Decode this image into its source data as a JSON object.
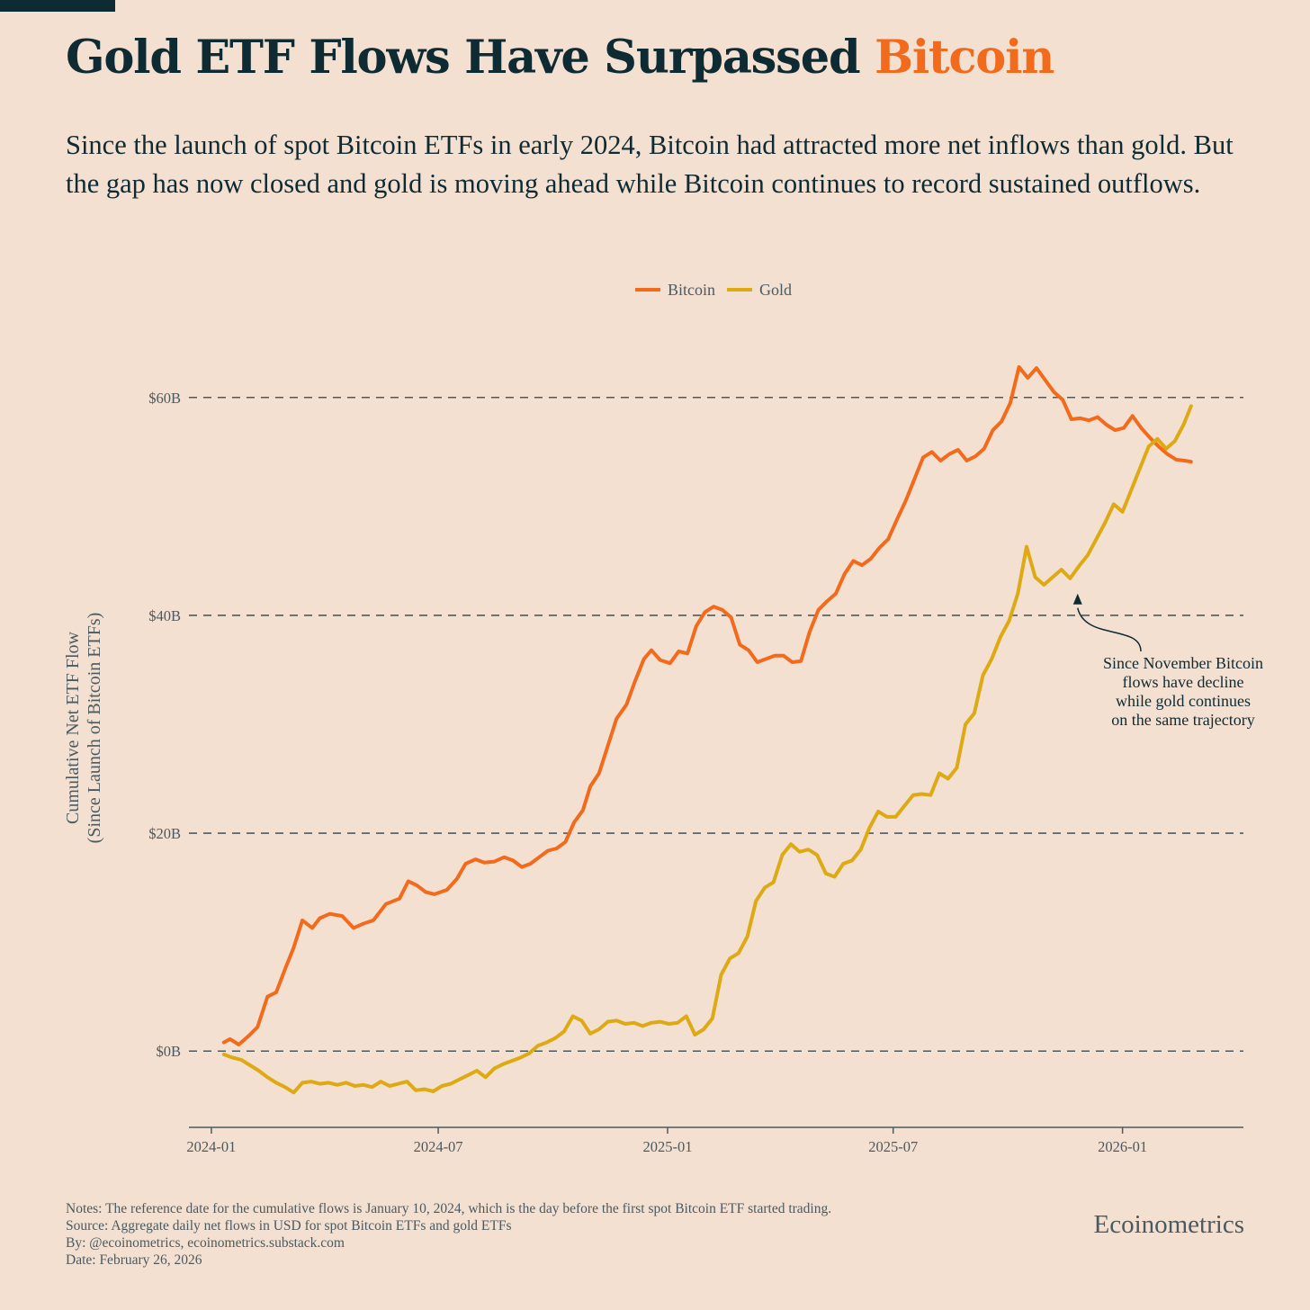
{
  "header": {
    "title_main": "Gold ETF Flows Have Surpassed",
    "title_highlight": "Bitcoin",
    "subtitle": "Since the launch of spot Bitcoin ETFs in early 2024, Bitcoin had attracted more net inflows than gold. But the gap has now closed and gold is moving ahead while Bitcoin continues to record sustained outflows."
  },
  "colors": {
    "bitcoin": "#f26b1d",
    "gold": "#ddaa14",
    "accent_dark": "#0e2a33",
    "background": "#f3e0d0"
  },
  "chart_data": {
    "type": "line",
    "ylabel": "Cumulative Net ETF Flow\n(Since Launch of Bitcoin ETFs)",
    "ylim": [
      -7,
      67
    ],
    "y_ticks": [
      0,
      20,
      40,
      60
    ],
    "y_tick_labels": [
      "$0B",
      "$20B",
      "$40B",
      "$60B"
    ],
    "xlim": [
      "2023-12-14",
      "2026-04-08"
    ],
    "x_ticks": [
      "2024-01-01",
      "2024-07-01",
      "2025-01-01",
      "2025-07-01",
      "2026-01-01"
    ],
    "x_tick_labels": [
      "2024-01",
      "2024-07",
      "2025-01",
      "2025-07",
      "2026-01"
    ],
    "grid": "horizontal dashed",
    "legend": "top-center",
    "series": [
      {
        "name": "Bitcoin",
        "unit": "USD billions",
        "points": [
          [
            "2024-01-11",
            0.8
          ],
          [
            "2024-01-16",
            1.1
          ],
          [
            "2024-01-23",
            0.6
          ],
          [
            "2024-01-31",
            1.4
          ],
          [
            "2024-02-07",
            2.2
          ],
          [
            "2024-02-15",
            5.0
          ],
          [
            "2024-02-22",
            5.4
          ],
          [
            "2024-02-29",
            7.5
          ],
          [
            "2024-03-07",
            9.5
          ],
          [
            "2024-03-14",
            12.0
          ],
          [
            "2024-03-22",
            11.3
          ],
          [
            "2024-03-28",
            12.2
          ],
          [
            "2024-04-05",
            12.6
          ],
          [
            "2024-04-15",
            12.4
          ],
          [
            "2024-04-24",
            11.3
          ],
          [
            "2024-05-02",
            11.7
          ],
          [
            "2024-05-10",
            12.0
          ],
          [
            "2024-05-20",
            13.5
          ],
          [
            "2024-05-31",
            14.0
          ],
          [
            "2024-06-07",
            15.6
          ],
          [
            "2024-06-14",
            15.2
          ],
          [
            "2024-06-21",
            14.6
          ],
          [
            "2024-06-28",
            14.4
          ],
          [
            "2024-07-08",
            14.8
          ],
          [
            "2024-07-16",
            15.8
          ],
          [
            "2024-07-23",
            17.2
          ],
          [
            "2024-07-31",
            17.6
          ],
          [
            "2024-08-07",
            17.3
          ],
          [
            "2024-08-15",
            17.4
          ],
          [
            "2024-08-23",
            17.8
          ],
          [
            "2024-08-30",
            17.5
          ],
          [
            "2024-09-06",
            16.9
          ],
          [
            "2024-09-13",
            17.2
          ],
          [
            "2024-09-20",
            17.8
          ],
          [
            "2024-09-27",
            18.4
          ],
          [
            "2024-10-04",
            18.6
          ],
          [
            "2024-10-11",
            19.2
          ],
          [
            "2024-10-18",
            21.0
          ],
          [
            "2024-10-25",
            22.1
          ],
          [
            "2024-10-31",
            24.3
          ],
          [
            "2024-11-07",
            25.5
          ],
          [
            "2024-11-14",
            28.0
          ],
          [
            "2024-11-21",
            30.5
          ],
          [
            "2024-11-29",
            31.8
          ],
          [
            "2024-12-06",
            34.0
          ],
          [
            "2024-12-13",
            36.0
          ],
          [
            "2024-12-19",
            36.8
          ],
          [
            "2024-12-26",
            35.9
          ],
          [
            "2025-01-03",
            35.6
          ],
          [
            "2025-01-10",
            36.7
          ],
          [
            "2025-01-17",
            36.5
          ],
          [
            "2025-01-24",
            39.0
          ],
          [
            "2025-01-31",
            40.3
          ],
          [
            "2025-02-07",
            40.8
          ],
          [
            "2025-02-14",
            40.5
          ],
          [
            "2025-02-21",
            39.8
          ],
          [
            "2025-02-28",
            37.3
          ],
          [
            "2025-03-07",
            36.8
          ],
          [
            "2025-03-14",
            35.7
          ],
          [
            "2025-03-21",
            36.0
          ],
          [
            "2025-03-28",
            36.3
          ],
          [
            "2025-04-04",
            36.3
          ],
          [
            "2025-04-11",
            35.7
          ],
          [
            "2025-04-18",
            35.8
          ],
          [
            "2025-04-25",
            38.5
          ],
          [
            "2025-05-02",
            40.5
          ],
          [
            "2025-05-09",
            41.3
          ],
          [
            "2025-05-16",
            42.0
          ],
          [
            "2025-05-23",
            43.8
          ],
          [
            "2025-05-30",
            45.0
          ],
          [
            "2025-06-06",
            44.6
          ],
          [
            "2025-06-13",
            45.2
          ],
          [
            "2025-06-20",
            46.2
          ],
          [
            "2025-06-27",
            47.0
          ],
          [
            "2025-07-04",
            48.8
          ],
          [
            "2025-07-11",
            50.5
          ],
          [
            "2025-07-18",
            52.5
          ],
          [
            "2025-07-25",
            54.5
          ],
          [
            "2025-08-01",
            55.0
          ],
          [
            "2025-08-08",
            54.2
          ],
          [
            "2025-08-15",
            54.8
          ],
          [
            "2025-08-22",
            55.2
          ],
          [
            "2025-08-29",
            54.2
          ],
          [
            "2025-09-05",
            54.6
          ],
          [
            "2025-09-12",
            55.3
          ],
          [
            "2025-09-19",
            57.0
          ],
          [
            "2025-09-26",
            57.8
          ],
          [
            "2025-10-03",
            59.5
          ],
          [
            "2025-10-10",
            62.8
          ],
          [
            "2025-10-17",
            61.8
          ],
          [
            "2025-10-24",
            62.7
          ],
          [
            "2025-10-31",
            61.6
          ],
          [
            "2025-11-07",
            60.5
          ],
          [
            "2025-11-14",
            59.8
          ],
          [
            "2025-11-21",
            58.0
          ],
          [
            "2025-11-28",
            58.1
          ],
          [
            "2025-12-05",
            57.9
          ],
          [
            "2025-12-12",
            58.2
          ],
          [
            "2025-12-19",
            57.5
          ],
          [
            "2025-12-26",
            57.0
          ],
          [
            "2026-01-02",
            57.2
          ],
          [
            "2026-01-09",
            58.3
          ],
          [
            "2026-01-16",
            57.2
          ],
          [
            "2026-01-23",
            56.3
          ],
          [
            "2026-01-30",
            55.5
          ],
          [
            "2026-02-06",
            54.8
          ],
          [
            "2026-02-13",
            54.3
          ],
          [
            "2026-02-20",
            54.2
          ],
          [
            "2026-02-25",
            54.1
          ]
        ]
      },
      {
        "name": "Gold",
        "unit": "USD billions",
        "points": [
          [
            "2024-01-11",
            -0.3
          ],
          [
            "2024-01-18",
            -0.6
          ],
          [
            "2024-01-25",
            -0.8
          ],
          [
            "2024-02-01",
            -1.3
          ],
          [
            "2024-02-08",
            -1.8
          ],
          [
            "2024-02-15",
            -2.4
          ],
          [
            "2024-02-22",
            -2.9
          ],
          [
            "2024-02-29",
            -3.3
          ],
          [
            "2024-03-07",
            -3.8
          ],
          [
            "2024-03-14",
            -2.9
          ],
          [
            "2024-03-21",
            -2.8
          ],
          [
            "2024-03-28",
            -3.0
          ],
          [
            "2024-04-04",
            -2.9
          ],
          [
            "2024-04-11",
            -3.1
          ],
          [
            "2024-04-18",
            -2.9
          ],
          [
            "2024-04-25",
            -3.2
          ],
          [
            "2024-05-02",
            -3.1
          ],
          [
            "2024-05-09",
            -3.3
          ],
          [
            "2024-05-16",
            -2.8
          ],
          [
            "2024-05-23",
            -3.2
          ],
          [
            "2024-05-30",
            -3.0
          ],
          [
            "2024-06-06",
            -2.8
          ],
          [
            "2024-06-13",
            -3.6
          ],
          [
            "2024-06-20",
            -3.5
          ],
          [
            "2024-06-27",
            -3.7
          ],
          [
            "2024-07-04",
            -3.2
          ],
          [
            "2024-07-11",
            -3.0
          ],
          [
            "2024-07-18",
            -2.6
          ],
          [
            "2024-07-25",
            -2.2
          ],
          [
            "2024-08-01",
            -1.8
          ],
          [
            "2024-08-08",
            -2.4
          ],
          [
            "2024-08-15",
            -1.6
          ],
          [
            "2024-08-22",
            -1.2
          ],
          [
            "2024-08-29",
            -0.9
          ],
          [
            "2024-09-05",
            -0.6
          ],
          [
            "2024-09-12",
            -0.2
          ],
          [
            "2024-09-19",
            0.5
          ],
          [
            "2024-09-26",
            0.8
          ],
          [
            "2024-10-03",
            1.2
          ],
          [
            "2024-10-10",
            1.8
          ],
          [
            "2024-10-17",
            3.2
          ],
          [
            "2024-10-24",
            2.8
          ],
          [
            "2024-10-31",
            1.6
          ],
          [
            "2024-11-07",
            2.0
          ],
          [
            "2024-11-14",
            2.7
          ],
          [
            "2024-11-21",
            2.8
          ],
          [
            "2024-11-28",
            2.5
          ],
          [
            "2024-12-05",
            2.6
          ],
          [
            "2024-12-12",
            2.3
          ],
          [
            "2024-12-19",
            2.6
          ],
          [
            "2024-12-26",
            2.7
          ],
          [
            "2025-01-02",
            2.5
          ],
          [
            "2025-01-09",
            2.6
          ],
          [
            "2025-01-16",
            3.2
          ],
          [
            "2025-01-23",
            1.5
          ],
          [
            "2025-01-30",
            2.0
          ],
          [
            "2025-02-06",
            3.0
          ],
          [
            "2025-02-13",
            7.0
          ],
          [
            "2025-02-20",
            8.5
          ],
          [
            "2025-02-27",
            9.0
          ],
          [
            "2025-03-06",
            10.5
          ],
          [
            "2025-03-13",
            13.8
          ],
          [
            "2025-03-20",
            15.0
          ],
          [
            "2025-03-27",
            15.5
          ],
          [
            "2025-04-03",
            18.0
          ],
          [
            "2025-04-10",
            19.0
          ],
          [
            "2025-04-17",
            18.3
          ],
          [
            "2025-04-24",
            18.5
          ],
          [
            "2025-05-01",
            18.0
          ],
          [
            "2025-05-08",
            16.3
          ],
          [
            "2025-05-15",
            16.0
          ],
          [
            "2025-05-22",
            17.2
          ],
          [
            "2025-05-29",
            17.5
          ],
          [
            "2025-06-05",
            18.5
          ],
          [
            "2025-06-12",
            20.5
          ],
          [
            "2025-06-19",
            22.0
          ],
          [
            "2025-06-26",
            21.5
          ],
          [
            "2025-07-03",
            21.5
          ],
          [
            "2025-07-10",
            22.5
          ],
          [
            "2025-07-17",
            23.5
          ],
          [
            "2025-07-24",
            23.6
          ],
          [
            "2025-07-31",
            23.5
          ],
          [
            "2025-08-07",
            25.5
          ],
          [
            "2025-08-14",
            25.0
          ],
          [
            "2025-08-21",
            26.0
          ],
          [
            "2025-08-28",
            30.0
          ],
          [
            "2025-09-04",
            31.0
          ],
          [
            "2025-09-11",
            34.5
          ],
          [
            "2025-09-18",
            36.0
          ],
          [
            "2025-09-25",
            38.0
          ],
          [
            "2025-10-02",
            39.5
          ],
          [
            "2025-10-09",
            42.0
          ],
          [
            "2025-10-16",
            46.3
          ],
          [
            "2025-10-23",
            43.5
          ],
          [
            "2025-10-30",
            42.8
          ],
          [
            "2025-11-06",
            43.5
          ],
          [
            "2025-11-13",
            44.2
          ],
          [
            "2025-11-20",
            43.4
          ],
          [
            "2025-11-27",
            44.5
          ],
          [
            "2025-12-04",
            45.5
          ],
          [
            "2025-12-11",
            47.0
          ],
          [
            "2025-12-18",
            48.5
          ],
          [
            "2025-12-25",
            50.2
          ],
          [
            "2026-01-01",
            49.5
          ],
          [
            "2026-01-08",
            51.5
          ],
          [
            "2026-01-15",
            53.5
          ],
          [
            "2026-01-22",
            55.5
          ],
          [
            "2026-01-29",
            56.2
          ],
          [
            "2026-02-05",
            55.3
          ],
          [
            "2026-02-12",
            56.0
          ],
          [
            "2026-02-19",
            57.5
          ],
          [
            "2026-02-25",
            59.2
          ]
        ]
      }
    ],
    "annotations": [
      {
        "text": "Since November Bitcoin\nflows have decline\nwhile gold continues\non the same trajectory",
        "points_to": [
          "2025-11-26",
          42.0
        ]
      }
    ]
  },
  "footer": {
    "notes": "Notes: The reference date for the cumulative flows is January 10, 2024, which is the day before the first spot Bitcoin ETF started trading.",
    "source": "Source: Aggregate daily net flows in USD for spot Bitcoin ETFs and gold ETFs",
    "by": "By: @ecoinometrics, ecoinometrics.substack.com",
    "date": "Date: February 26, 2026",
    "brand": "Ecoinometrics"
  }
}
